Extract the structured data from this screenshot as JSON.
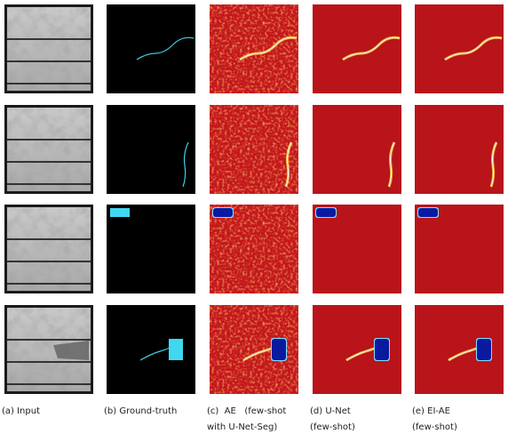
{
  "figure": {
    "captions": [
      [
        "(a) Input"
      ],
      [
        "(b) Ground-truth"
      ],
      [
        "(c)  AE   (few-shot",
        "with U-Net-Seg)"
      ],
      [
        "(d) U-Net",
        "(few-shot)"
      ],
      [
        "(e) EI-AE",
        "(few-shot)"
      ]
    ]
  }
}
